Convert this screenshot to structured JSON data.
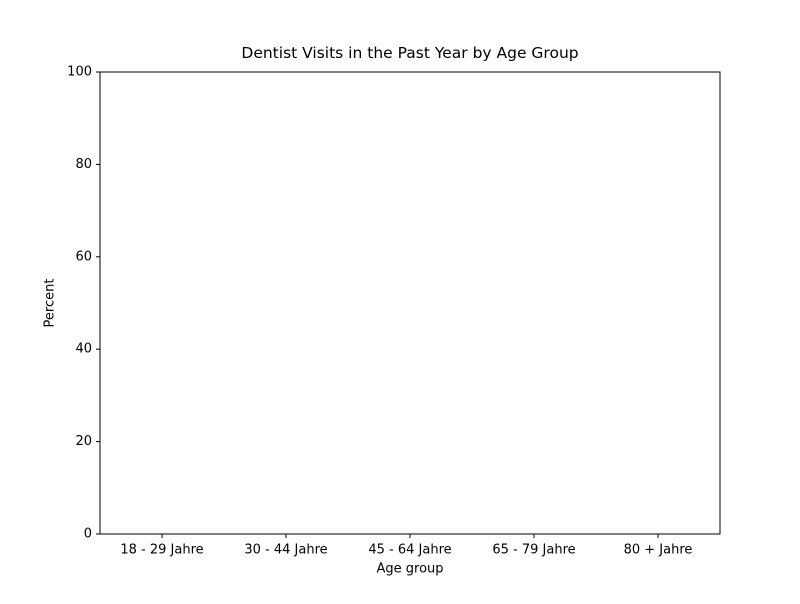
{
  "chart_data": {
    "type": "bar",
    "title": "Dentist Visits in the Past Year by Age Group",
    "x_label": "Age group",
    "y_label": "Percent",
    "categories": [
      "18 - 29 Jahre",
      "30 - 44 Jahre",
      "45 - 64 Jahre",
      "65 - 79 Jahre",
      "80 + Jahre"
    ],
    "ylim": [
      0,
      100
    ],
    "yticks": [
      0,
      20,
      40,
      60,
      80,
      100
    ],
    "grid": false
  }
}
